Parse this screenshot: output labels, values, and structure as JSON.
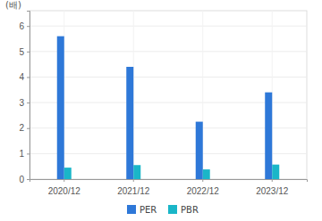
{
  "chart_data": {
    "type": "bar",
    "y_label": "(배)",
    "categories": [
      "2020/12",
      "2021/12",
      "2022/12",
      "2023/12"
    ],
    "series": [
      {
        "name": "PER",
        "color": "#2e78d8",
        "values": [
          5.6,
          4.4,
          2.25,
          3.4
        ]
      },
      {
        "name": "PBR",
        "color": "#1ab6c8",
        "values": [
          0.45,
          0.55,
          0.38,
          0.57
        ]
      }
    ],
    "ylim": [
      0,
      6.6
    ],
    "yticks": [
      0,
      1,
      2,
      3,
      4,
      5,
      6
    ],
    "grid": true,
    "legend": "bottom"
  }
}
